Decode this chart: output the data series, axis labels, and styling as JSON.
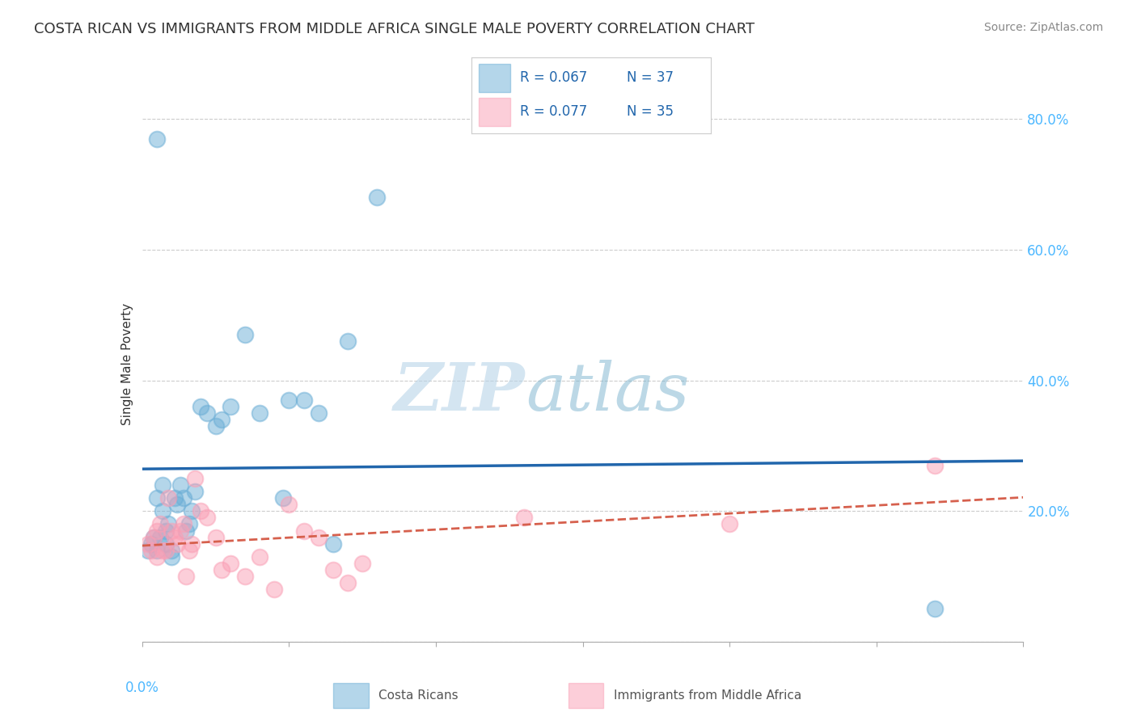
{
  "title": "COSTA RICAN VS IMMIGRANTS FROM MIDDLE AFRICA SINGLE MALE POVERTY CORRELATION CHART",
  "source": "Source: ZipAtlas.com",
  "ylabel": "Single Male Poverty",
  "xlim": [
    0.0,
    0.3
  ],
  "ylim": [
    0.0,
    0.85
  ],
  "yticks": [
    0.0,
    0.2,
    0.4,
    0.6,
    0.8
  ],
  "ytick_labels": [
    "",
    "20.0%",
    "40.0%",
    "60.0%",
    "80.0%"
  ],
  "xticks": [
    0.0,
    0.05,
    0.1,
    0.15,
    0.2,
    0.25,
    0.3
  ],
  "background_color": "#ffffff",
  "grid_color": "#cccccc",
  "blue_color": "#6baed6",
  "pink_color": "#fa9fb5",
  "blue_line_color": "#2166ac",
  "pink_line_color": "#d6604d",
  "legend_R1": "R = 0.067",
  "legend_N1": "N = 37",
  "legend_R2": "R = 0.077",
  "legend_N2": "N = 35",
  "legend_text_color": "#2166ac",
  "watermark_zip": "ZIP",
  "watermark_atlas": "atlas",
  "blue_scatter_x": [
    0.002,
    0.003,
    0.004,
    0.005,
    0.005,
    0.006,
    0.007,
    0.007,
    0.008,
    0.008,
    0.009,
    0.01,
    0.01,
    0.011,
    0.012,
    0.013,
    0.014,
    0.015,
    0.016,
    0.017,
    0.018,
    0.02,
    0.022,
    0.025,
    0.027,
    0.03,
    0.035,
    0.04,
    0.048,
    0.05,
    0.055,
    0.06,
    0.065,
    0.07,
    0.08,
    0.27,
    0.005
  ],
  "blue_scatter_y": [
    0.14,
    0.15,
    0.16,
    0.14,
    0.22,
    0.16,
    0.2,
    0.24,
    0.15,
    0.17,
    0.18,
    0.14,
    0.13,
    0.22,
    0.21,
    0.24,
    0.22,
    0.17,
    0.18,
    0.2,
    0.23,
    0.36,
    0.35,
    0.33,
    0.34,
    0.36,
    0.47,
    0.35,
    0.22,
    0.37,
    0.37,
    0.35,
    0.15,
    0.46,
    0.68,
    0.05,
    0.77
  ],
  "pink_scatter_x": [
    0.002,
    0.003,
    0.004,
    0.005,
    0.005,
    0.006,
    0.007,
    0.008,
    0.009,
    0.01,
    0.011,
    0.012,
    0.013,
    0.014,
    0.015,
    0.016,
    0.017,
    0.018,
    0.02,
    0.022,
    0.025,
    0.027,
    0.03,
    0.035,
    0.04,
    0.045,
    0.05,
    0.055,
    0.06,
    0.065,
    0.07,
    0.075,
    0.13,
    0.2,
    0.27
  ],
  "pink_scatter_y": [
    0.15,
    0.14,
    0.16,
    0.17,
    0.13,
    0.18,
    0.14,
    0.14,
    0.22,
    0.17,
    0.16,
    0.15,
    0.17,
    0.18,
    0.1,
    0.14,
    0.15,
    0.25,
    0.2,
    0.19,
    0.16,
    0.11,
    0.12,
    0.1,
    0.13,
    0.08,
    0.21,
    0.17,
    0.16,
    0.11,
    0.09,
    0.12,
    0.19,
    0.18,
    0.27
  ]
}
